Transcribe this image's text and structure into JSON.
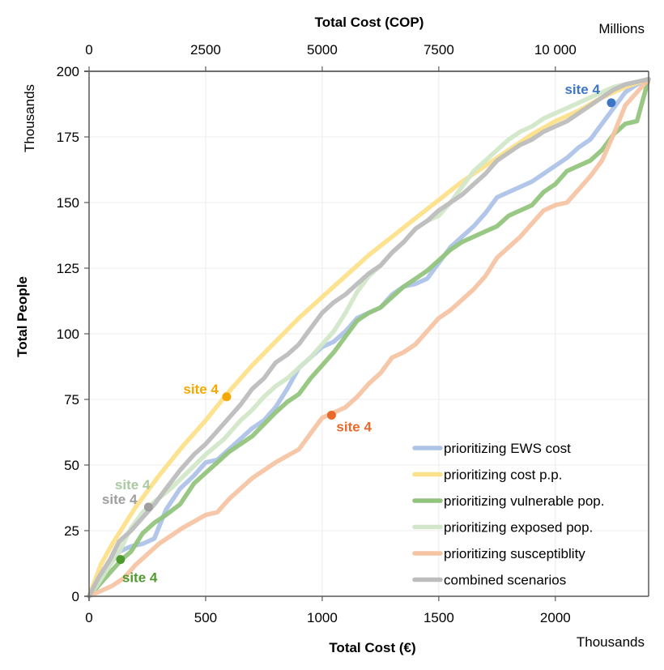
{
  "chart_data": {
    "type": "line",
    "title": "",
    "xlabel": "Total Cost (€)",
    "xlabel_unit": "Thousands",
    "x2label": "Total Cost (COP)",
    "x2label_unit": "Millions",
    "ylabel": "Total People",
    "ylabel_unit": "Thousands",
    "xlim": [
      0,
      2400
    ],
    "ylim": [
      0,
      200
    ],
    "x2lim": [
      0,
      12000
    ],
    "xticks": [
      0,
      500,
      1000,
      1500,
      2000
    ],
    "xtick_labels": [
      "0",
      "500",
      "1000",
      "1500",
      "2000"
    ],
    "x2ticks": [
      0,
      2500,
      5000,
      7500,
      10000
    ],
    "x2tick_labels": [
      "0",
      "2500",
      "5000",
      "7500",
      "10 000"
    ],
    "yticks": [
      0,
      25,
      50,
      75,
      100,
      125,
      150,
      175,
      200
    ],
    "ytick_labels": [
      "0",
      "25",
      "50",
      "75",
      "100",
      "125",
      "150",
      "175",
      "200"
    ],
    "grid": true,
    "legend_position": "bottom-right",
    "series": [
      {
        "name": "prioritizing EWS cost",
        "color": "#aec3e8",
        "x": [
          0,
          40,
          90,
          130,
          180,
          230,
          280,
          330,
          390,
          450,
          500,
          550,
          600,
          650,
          700,
          750,
          800,
          850,
          900,
          950,
          1000,
          1050,
          1100,
          1150,
          1200,
          1250,
          1300,
          1350,
          1400,
          1450,
          1500,
          1550,
          1600,
          1650,
          1700,
          1750,
          1800,
          1850,
          1900,
          1950,
          2000,
          2050,
          2100,
          2150,
          2200,
          2250,
          2300,
          2350,
          2400
        ],
        "y": [
          0,
          5,
          12,
          17,
          19,
          20,
          22,
          33,
          41,
          46,
          51,
          52,
          56,
          60,
          64,
          67,
          72,
          79,
          87,
          91,
          95,
          97,
          101,
          106,
          108,
          110,
          115,
          118,
          119,
          121,
          127,
          133,
          137,
          141,
          146,
          152,
          154,
          156,
          158,
          161,
          164,
          167,
          171,
          174,
          180,
          186,
          192,
          195,
          197
        ]
      },
      {
        "name": "prioritizing cost p.p.",
        "color": "#fde08a",
        "x": [
          0,
          50,
          100,
          150,
          200,
          300,
          400,
          500,
          600,
          700,
          800,
          900,
          1000,
          1100,
          1200,
          1300,
          1400,
          1500,
          1600,
          1700,
          1800,
          1900,
          2000,
          2100,
          2200,
          2300,
          2400
        ],
        "y": [
          0,
          12,
          20,
          27,
          34,
          46,
          57,
          67,
          78,
          88,
          97,
          106,
          114,
          122,
          130,
          137,
          144,
          151,
          158,
          164,
          170,
          176,
          181,
          185,
          190,
          194,
          197
        ]
      },
      {
        "name": "prioritizing vulnerable pop.",
        "color": "#93c47d",
        "x": [
          0,
          40,
          90,
          140,
          180,
          230,
          280,
          330,
          390,
          450,
          500,
          550,
          600,
          700,
          800,
          850,
          900,
          950,
          1000,
          1050,
          1100,
          1150,
          1200,
          1250,
          1300,
          1350,
          1400,
          1450,
          1500,
          1550,
          1600,
          1650,
          1700,
          1750,
          1800,
          1850,
          1900,
          1950,
          2000,
          2050,
          2100,
          2150,
          2200,
          2250,
          2300,
          2350,
          2400
        ],
        "y": [
          0,
          4,
          9,
          14,
          17,
          24,
          28,
          31,
          35,
          43,
          47,
          51,
          55,
          61,
          70,
          74,
          77,
          83,
          88,
          93,
          99,
          105,
          108,
          110,
          114,
          118,
          121,
          124,
          128,
          132,
          135,
          137,
          139,
          141,
          145,
          147,
          149,
          154,
          157,
          162,
          164,
          166,
          170,
          176,
          180,
          181,
          197
        ]
      },
      {
        "name": "prioritizing exposed pop.",
        "color": "#d2e7c9",
        "x": [
          0,
          40,
          90,
          130,
          180,
          230,
          280,
          350,
          420,
          500,
          580,
          650,
          700,
          750,
          800,
          850,
          900,
          950,
          1000,
          1050,
          1100,
          1150,
          1200,
          1250,
          1300,
          1350,
          1400,
          1450,
          1500,
          1550,
          1600,
          1650,
          1700,
          1750,
          1800,
          1850,
          1900,
          1950,
          2000,
          2050,
          2100,
          2150,
          2200,
          2250,
          2300,
          2350,
          2400
        ],
        "y": [
          0,
          5,
          12,
          17,
          26,
          32,
          36,
          41,
          47,
          54,
          60,
          67,
          71,
          76,
          80,
          83,
          87,
          91,
          96,
          101,
          108,
          116,
          122,
          126,
          131,
          135,
          140,
          143,
          145,
          150,
          156,
          162,
          166,
          170,
          174,
          177,
          179,
          182,
          184,
          186,
          188,
          190,
          192,
          194,
          195,
          196,
          197
        ]
      },
      {
        "name": "prioritizing susceptiblity",
        "color": "#f6c4a3",
        "x": [
          0,
          50,
          100,
          150,
          200,
          250,
          300,
          400,
          500,
          550,
          600,
          700,
          800,
          900,
          950,
          1000,
          1050,
          1100,
          1150,
          1200,
          1250,
          1300,
          1350,
          1400,
          1450,
          1500,
          1550,
          1600,
          1650,
          1700,
          1750,
          1800,
          1850,
          1900,
          1950,
          2000,
          2050,
          2100,
          2150,
          2200,
          2250,
          2300,
          2350,
          2400
        ],
        "y": [
          0,
          2,
          4,
          7,
          12,
          16,
          20,
          26,
          31,
          32,
          37,
          45,
          51,
          56,
          62,
          68,
          70,
          72,
          76,
          81,
          85,
          91,
          93,
          96,
          101,
          106,
          109,
          113,
          117,
          122,
          129,
          133,
          137,
          142,
          147,
          149,
          150,
          155,
          160,
          166,
          176,
          187,
          192,
          197
        ]
      },
      {
        "name": "combined scenarios",
        "color": "#bdbdbd",
        "x": [
          0,
          40,
          90,
          130,
          180,
          230,
          280,
          330,
          390,
          450,
          500,
          550,
          600,
          650,
          700,
          750,
          800,
          850,
          900,
          950,
          1000,
          1050,
          1100,
          1150,
          1200,
          1250,
          1300,
          1350,
          1400,
          1450,
          1500,
          1550,
          1600,
          1650,
          1700,
          1750,
          1800,
          1850,
          1900,
          1950,
          2000,
          2050,
          2100,
          2150,
          2200,
          2250,
          2300,
          2350,
          2400
        ],
        "y": [
          0,
          7,
          14,
          21,
          25,
          30,
          35,
          41,
          48,
          54,
          58,
          63,
          68,
          73,
          79,
          83,
          89,
          92,
          96,
          102,
          108,
          112,
          115,
          119,
          123,
          126,
          131,
          135,
          140,
          143,
          147,
          150,
          153,
          157,
          161,
          166,
          169,
          172,
          174,
          177,
          179,
          181,
          184,
          187,
          190,
          193,
          195,
          196,
          197
        ]
      }
    ],
    "annotations": [
      {
        "text": "site 4",
        "series": "prioritizing EWS cost",
        "x": 2240,
        "y": 188,
        "color": "#3d76c7",
        "label_side": "left-above"
      },
      {
        "text": "site 4",
        "series": "prioritizing cost p.p.",
        "x": 590,
        "y": 76,
        "color": "#f6a800",
        "label_side": "left"
      },
      {
        "text": "site 4",
        "series": "prioritizing vulnerable pop.",
        "x": 135,
        "y": 14,
        "color": "#4e9a2f",
        "label_side": "right-below"
      },
      {
        "text": "site 4",
        "series": "prioritizing exposed pop.",
        "x": 255,
        "y": 34,
        "color": "#a9c9a1",
        "label_side": "left-above"
      },
      {
        "text": "site 4",
        "series": "prioritizing susceptiblity",
        "x": 1040,
        "y": 69,
        "color": "#e8692a",
        "label_side": "right-below"
      },
      {
        "text": "site 4",
        "series": "combined scenarios",
        "x": 255,
        "y": 34,
        "color": "#9e9e9e",
        "label_side": "left"
      }
    ]
  }
}
